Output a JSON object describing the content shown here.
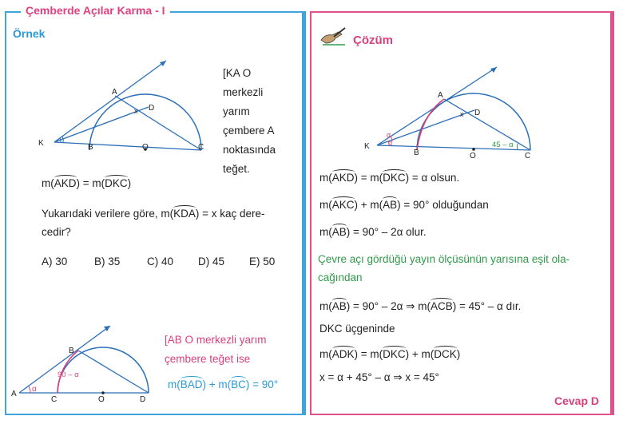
{
  "title": "Çemberde Açılar Karma - I",
  "left": {
    "example_heading": "Örnek",
    "desc_lines": [
      "[KA  O",
      "merkezli",
      "yarım",
      "çembere  A",
      "noktasında",
      "teğet."
    ],
    "given_prefix": "m(",
    "given_arc1": "AKD",
    "given_mid": ") = m(",
    "given_arc2": "DKC",
    "given_suffix": ")",
    "question_line1_a": "Yukarıdaki verilere göre,  m(",
    "question_arc": "KDA",
    "question_line1_b": ") = x  kaç dere-",
    "question_line2": "cedir?",
    "choices": [
      "A) 30",
      "B) 35",
      "C) 40",
      "D) 45",
      "E) 50"
    ],
    "fig1_labels": {
      "A": "A",
      "K": "K",
      "B": "B",
      "O": "O",
      "C": "C",
      "D": "D",
      "x": "x"
    },
    "fig2_labels": {
      "A": "A",
      "B": "B",
      "C": "C",
      "O": "O",
      "D": "D",
      "alpha": "α",
      "angle": "90 – α"
    },
    "rule_line1": "[AB  O  merkezli  yarım",
    "rule_line2": "çembere teğet ise",
    "rule_formula_prefix": "m(",
    "rule_arc1": "BAD",
    "rule_mid": ") + m(",
    "rule_arc2": "BC",
    "rule_suffix": ") = 90°"
  },
  "right": {
    "solution_heading": "Çözüm",
    "fig_labels": {
      "A": "A",
      "K": "K",
      "B": "B",
      "O": "O",
      "C": "C",
      "D": "D",
      "x": "x",
      "alpha": "α",
      "angle": "45 – α"
    },
    "line1": {
      "p": "m(",
      "a1": "AKD",
      "m": ") = m(",
      "a2": "DKC",
      "s": ") = α   olsun."
    },
    "line2": {
      "p": "m(",
      "a1": "AKC",
      "m": ") + m(",
      "a2": "AB",
      "s": ") = 90°   olduğundan"
    },
    "line3": {
      "p": "m(",
      "a1": "AB",
      "s": ") = 90° – 2α   olur."
    },
    "green_line1": "Çevre açı gördüğü yayın ölçüsünün yarısına eşit ola-",
    "green_line2": "cağından",
    "line4": {
      "p": "m(",
      "a1": "AB",
      "m": ") = 90° – 2α  ⇒  m(",
      "a2": "ACB",
      "s": ") = 45° – α   dır."
    },
    "line5": "DKC  üçgeninde",
    "line6": {
      "p": "m(",
      "a1": "ADK",
      "m": ") = m(",
      "a2": "DKC",
      "m2": ") + m(",
      "a3": "DCK",
      "s": ")"
    },
    "line7": "x = α + 45° – α  ⇒  x = 45°",
    "answer": "Cevap D"
  },
  "colors": {
    "blue": "#2a9ad6",
    "pink": "#d8407c",
    "green": "#2f9a4a",
    "line": "#2b6fb8"
  }
}
